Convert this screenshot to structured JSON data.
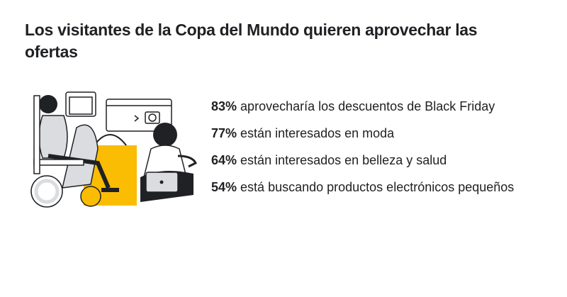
{
  "header": {
    "title": "Los visitantes de la Copa del Mundo quieren aprovechar las ofertas"
  },
  "stats": [
    {
      "percent": "83%",
      "text": "aprovecharía los descuentos de Black Friday"
    },
    {
      "percent": "77%",
      "text": "están interesados en moda"
    },
    {
      "percent": "64%",
      "text": "están interesados en belleza y salud"
    },
    {
      "percent": "54%",
      "text": "está buscando productos electrónicos pequeños"
    }
  ]
}
